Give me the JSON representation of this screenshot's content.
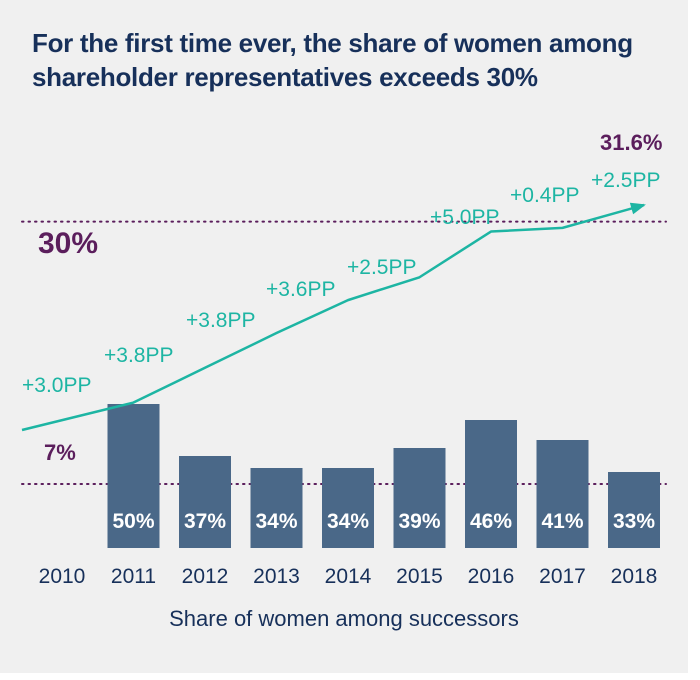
{
  "title": "For the first time ever, the share of women among shareholder representatives exceeds 30%",
  "colors": {
    "background": "#f0f0f0",
    "title": "#17305a",
    "bar": "#4a6888",
    "line": "#1db5a3",
    "reference": "#5b1e5c",
    "axis_text": "#17305a",
    "bar_label": "#ffffff"
  },
  "chart_data": [
    {
      "type": "line",
      "x": [
        "2010",
        "2011",
        "2012",
        "2013",
        "2014",
        "2015",
        "2016",
        "2017",
        "2018"
      ],
      "series": [
        {
          "values": [
            7.0,
            10.0,
            13.8,
            17.6,
            21.2,
            23.7,
            28.7,
            29.1,
            31.6
          ],
          "increments": [
            "+3.0PP",
            "+3.8PP",
            "+3.8PP",
            "+3.6PP",
            "+2.5PP",
            "+5.0PP",
            "+0.4PP",
            "+2.5PP"
          ]
        }
      ],
      "start_label": "7%",
      "end_label": "31.6%",
      "reference_line": {
        "value": 30,
        "label": "30%"
      },
      "ylim": [
        0,
        35
      ]
    },
    {
      "type": "bar",
      "categories": [
        "2011",
        "2012",
        "2013",
        "2014",
        "2015",
        "2016",
        "2017",
        "2018"
      ],
      "values": [
        50,
        37,
        34,
        34,
        39,
        46,
        41,
        33
      ],
      "value_labels": [
        "50%",
        "37%",
        "34%",
        "34%",
        "39%",
        "46%",
        "41%",
        "33%"
      ],
      "baseline_value": 30,
      "xlabel": "Share of women among successors",
      "ylim": [
        0,
        50
      ]
    }
  ],
  "x_tick_labels": [
    "2010",
    "2011",
    "2012",
    "2013",
    "2014",
    "2015",
    "2016",
    "2017",
    "2018"
  ]
}
